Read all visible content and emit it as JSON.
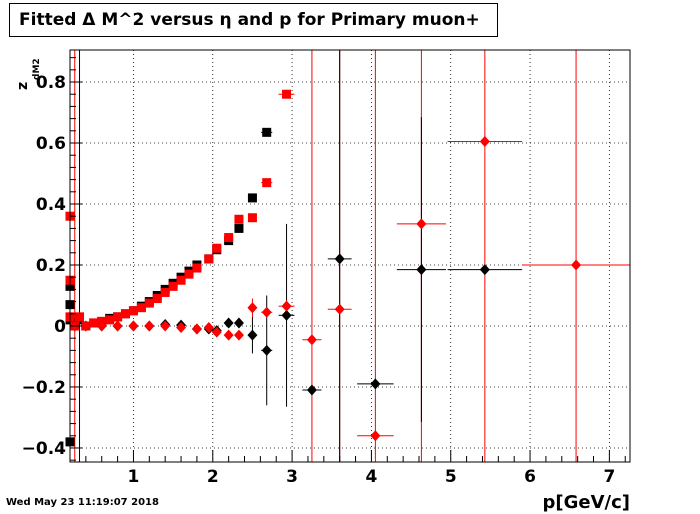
{
  "title": "Fitted Δ M^2 versus η and p for Primary muon+",
  "timestamp": "Wed May 23 11:19:07 2018",
  "chart_data": {
    "type": "scatter",
    "xlabel": "p[GeV/c]",
    "ylabel": "z",
    "ylabel_sub": "dM2",
    "xlim": [
      0.2,
      7.26
    ],
    "ylim": [
      -0.446,
      0.905
    ],
    "xticks": [
      "1",
      "2",
      "3",
      "4",
      "5",
      "6",
      "7"
    ],
    "xtick_values": [
      1,
      2,
      3,
      4,
      5,
      6,
      7
    ],
    "yticks": [
      "−0.4",
      "−0.2",
      "0",
      "0.2",
      "0.4",
      "0.6",
      "0.8"
    ],
    "ytick_values": [
      -0.4,
      -0.2,
      0,
      0.2,
      0.4,
      0.6,
      0.8
    ],
    "grid": true,
    "colors": {
      "black": "#000000",
      "red": "#ff0000"
    },
    "series": [
      {
        "marker": "square",
        "color": "#000000",
        "points": [
          {
            "x": 0.2,
            "y": -0.38
          },
          {
            "x": 0.2,
            "y": 0.07
          },
          {
            "x": 0.2,
            "y": 0.13
          },
          {
            "x": 0.2,
            "y": 0.02
          },
          {
            "x": 0.26,
            "y": 0.01
          },
          {
            "x": 0.32,
            "y": 0.02
          },
          {
            "x": 0.4,
            "y": 0.0
          },
          {
            "x": 0.5,
            "y": 0.01
          },
          {
            "x": 0.6,
            "y": 0.015
          },
          {
            "x": 0.7,
            "y": 0.025
          },
          {
            "x": 0.8,
            "y": 0.03
          },
          {
            "x": 0.9,
            "y": 0.04
          },
          {
            "x": 1.0,
            "y": 0.05
          },
          {
            "x": 1.1,
            "y": 0.065
          },
          {
            "x": 1.2,
            "y": 0.08
          },
          {
            "x": 1.3,
            "y": 0.1
          },
          {
            "x": 1.4,
            "y": 0.12
          },
          {
            "x": 1.5,
            "y": 0.14
          },
          {
            "x": 1.6,
            "y": 0.16
          },
          {
            "x": 1.7,
            "y": 0.18
          },
          {
            "x": 1.8,
            "y": 0.2
          },
          {
            "x": 1.95,
            "y": 0.22
          },
          {
            "x": 2.05,
            "y": 0.25
          },
          {
            "x": 2.2,
            "y": 0.28
          },
          {
            "x": 2.33,
            "y": 0.32
          },
          {
            "x": 2.5,
            "y": 0.42
          },
          {
            "x": 2.68,
            "y": 0.635,
            "xerr": 0.07
          }
        ]
      },
      {
        "marker": "square",
        "color": "#ff0000",
        "points": [
          {
            "x": 0.2,
            "y": 0.36
          },
          {
            "x": 0.2,
            "y": 0.15
          },
          {
            "x": 0.2,
            "y": 0.03
          },
          {
            "x": 0.26,
            "y": 0.0
          },
          {
            "x": 0.32,
            "y": 0.03
          },
          {
            "x": 0.4,
            "y": 0.0
          },
          {
            "x": 0.5,
            "y": 0.01
          },
          {
            "x": 0.6,
            "y": 0.015
          },
          {
            "x": 0.7,
            "y": 0.02
          },
          {
            "x": 0.8,
            "y": 0.03
          },
          {
            "x": 0.9,
            "y": 0.04
          },
          {
            "x": 1.0,
            "y": 0.05
          },
          {
            "x": 1.1,
            "y": 0.06
          },
          {
            "x": 1.2,
            "y": 0.075
          },
          {
            "x": 1.3,
            "y": 0.09
          },
          {
            "x": 1.4,
            "y": 0.11
          },
          {
            "x": 1.5,
            "y": 0.13
          },
          {
            "x": 1.6,
            "y": 0.15
          },
          {
            "x": 1.7,
            "y": 0.17
          },
          {
            "x": 1.8,
            "y": 0.19
          },
          {
            "x": 1.95,
            "y": 0.22
          },
          {
            "x": 2.05,
            "y": 0.255
          },
          {
            "x": 2.2,
            "y": 0.29
          },
          {
            "x": 2.33,
            "y": 0.35
          },
          {
            "x": 2.5,
            "y": 0.355
          },
          {
            "x": 2.68,
            "y": 0.47,
            "xerr": 0.07
          },
          {
            "x": 2.93,
            "y": 0.76,
            "xerr": 0.1
          }
        ]
      },
      {
        "marker": "diamond",
        "color": "#000000",
        "points": [
          {
            "x": 0.26,
            "y": 0.0
          },
          {
            "x": 0.4,
            "y": 0.0
          },
          {
            "x": 0.6,
            "y": 0.0
          },
          {
            "x": 0.8,
            "y": 0.0
          },
          {
            "x": 1.0,
            "y": 0.0
          },
          {
            "x": 1.2,
            "y": 0.0
          },
          {
            "x": 1.4,
            "y": 0.005
          },
          {
            "x": 1.6,
            "y": 0.003
          },
          {
            "x": 1.8,
            "y": -0.01
          },
          {
            "x": 1.95,
            "y": -0.01
          },
          {
            "x": 2.05,
            "y": -0.015
          },
          {
            "x": 2.2,
            "y": 0.01
          },
          {
            "x": 2.33,
            "y": 0.01
          },
          {
            "x": 2.5,
            "y": -0.03,
            "yerr": 0.06
          },
          {
            "x": 2.68,
            "y": -0.08,
            "xerr": 0.07,
            "yerr": 0.18
          },
          {
            "x": 2.93,
            "y": 0.035,
            "xerr": 0.1,
            "yerr": 0.3
          },
          {
            "x": 3.25,
            "y": -0.21,
            "xerr": 0.12,
            "yerr": 0.01
          },
          {
            "x": 3.6,
            "y": 0.22,
            "xerr": 0.15,
            "yerr": 0.8
          },
          {
            "x": 4.05,
            "y": -0.19,
            "xerr": 0.23,
            "yerr": 0.01
          },
          {
            "x": 4.63,
            "y": 0.185,
            "xerr": 0.31,
            "yerr": 0.5
          },
          {
            "x": 5.43,
            "y": 0.185,
            "xerr": 0.47
          }
        ]
      },
      {
        "marker": "diamond",
        "color": "#ff0000",
        "points": [
          {
            "x": 0.26,
            "y": 0.0
          },
          {
            "x": 0.4,
            "y": 0.0
          },
          {
            "x": 0.6,
            "y": 0.0
          },
          {
            "x": 0.8,
            "y": 0.0
          },
          {
            "x": 1.0,
            "y": 0.0
          },
          {
            "x": 1.2,
            "y": 0.0
          },
          {
            "x": 1.4,
            "y": 0.0
          },
          {
            "x": 1.6,
            "y": -0.005
          },
          {
            "x": 1.8,
            "y": -0.01
          },
          {
            "x": 1.95,
            "y": -0.005
          },
          {
            "x": 2.05,
            "y": -0.02
          },
          {
            "x": 2.2,
            "y": -0.03
          },
          {
            "x": 2.33,
            "y": -0.03
          },
          {
            "x": 2.5,
            "y": 0.06,
            "yerr": 0.03
          },
          {
            "x": 2.68,
            "y": 0.045,
            "xerr": 0.07
          },
          {
            "x": 2.93,
            "y": 0.065,
            "xerr": 0.1,
            "yerr": 0.02
          },
          {
            "x": 3.25,
            "y": -0.045,
            "xerr": 0.12
          },
          {
            "x": 3.6,
            "y": 0.055,
            "xerr": 0.15
          },
          {
            "x": 4.05,
            "y": -0.36,
            "xerr": 0.23
          },
          {
            "x": 4.63,
            "y": 0.335,
            "xerr": 0.31
          },
          {
            "x": 5.43,
            "y": 0.605,
            "xerr": 0.47
          },
          {
            "x": 6.58,
            "y": 0.2,
            "xerr": 0.68
          }
        ]
      }
    ],
    "full_height_error_bars": [
      {
        "x": 0.26,
        "color": "#ff0000"
      },
      {
        "x": 0.32,
        "color": "#000000"
      },
      {
        "x": 3.25,
        "color": "#ff0000"
      },
      {
        "x": 3.6,
        "color": "#ff0000"
      },
      {
        "x": 4.05,
        "color": "#ff0000"
      },
      {
        "x": 4.63,
        "color": "#ff0000"
      },
      {
        "x": 5.43,
        "color": "#ff0000"
      },
      {
        "x": 6.58,
        "color": "#ff0000"
      }
    ]
  }
}
